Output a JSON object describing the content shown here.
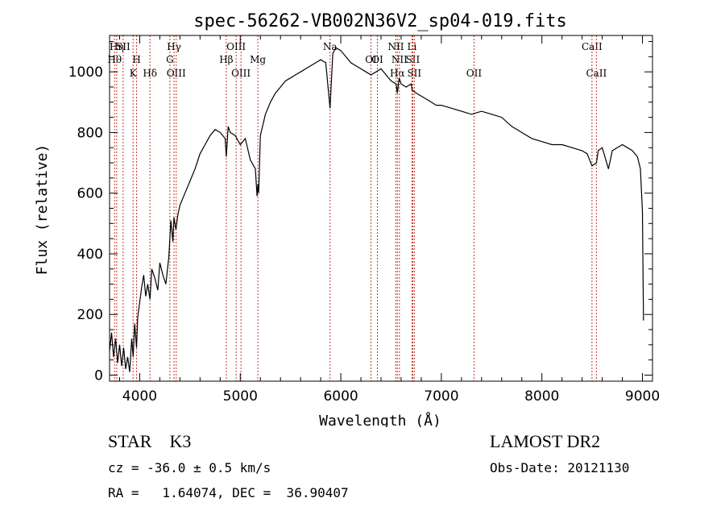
{
  "chart_data": {
    "type": "line",
    "title": "spec-56262-VB002N36V2_sp04-019.fits",
    "xlabel": "Wavelength (Å)",
    "ylabel": "Flux (relative)",
    "xlim": [
      3700,
      9100
    ],
    "ylim": [
      -20,
      1120
    ],
    "x_ticks": [
      4000,
      5000,
      6000,
      7000,
      8000,
      9000
    ],
    "y_ticks": [
      0,
      200,
      400,
      600,
      800,
      1000
    ],
    "grid": false,
    "series": [
      {
        "name": "spectrum",
        "x": [
          3700,
          3720,
          3740,
          3760,
          3780,
          3800,
          3820,
          3840,
          3860,
          3880,
          3900,
          3920,
          3935,
          3950,
          3968,
          3980,
          4000,
          4020,
          4040,
          4060,
          4080,
          4102,
          4120,
          4150,
          4180,
          4200,
          4230,
          4260,
          4290,
          4310,
          4330,
          4340,
          4360,
          4380,
          4400,
          4450,
          4500,
          4550,
          4600,
          4650,
          4700,
          4750,
          4800,
          4850,
          4861,
          4880,
          4900,
          4950,
          5000,
          5050,
          5100,
          5150,
          5167,
          5175,
          5183,
          5200,
          5250,
          5300,
          5350,
          5400,
          5450,
          5500,
          5550,
          5600,
          5650,
          5700,
          5750,
          5800,
          5850,
          5893,
          5920,
          5950,
          6000,
          6050,
          6100,
          6150,
          6200,
          6250,
          6300,
          6350,
          6400,
          6450,
          6500,
          6550,
          6563,
          6580,
          6600,
          6650,
          6700,
          6710,
          6750,
          6800,
          6850,
          6900,
          6950,
          7000,
          7100,
          7200,
          7300,
          7400,
          7500,
          7600,
          7700,
          7800,
          7900,
          8000,
          8100,
          8200,
          8300,
          8400,
          8450,
          8498,
          8542,
          8560,
          8600,
          8662,
          8700,
          8750,
          8800,
          8850,
          8900,
          8950,
          8980,
          9000,
          9010
        ],
        "y": [
          80,
          140,
          60,
          120,
          40,
          100,
          30,
          90,
          20,
          60,
          10,
          120,
          60,
          170,
          90,
          190,
          240,
          290,
          330,
          260,
          300,
          250,
          350,
          320,
          280,
          370,
          330,
          300,
          390,
          510,
          440,
          520,
          480,
          530,
          560,
          600,
          640,
          680,
          730,
          760,
          790,
          810,
          800,
          780,
          720,
          820,
          800,
          790,
          760,
          780,
          710,
          680,
          590,
          630,
          600,
          790,
          860,
          900,
          930,
          950,
          970,
          980,
          990,
          1000,
          1010,
          1020,
          1030,
          1040,
          1030,
          880,
          1060,
          1080,
          1070,
          1050,
          1030,
          1020,
          1010,
          1000,
          990,
          1000,
          1010,
          990,
          970,
          960,
          930,
          980,
          960,
          950,
          960,
          940,
          930,
          920,
          910,
          900,
          890,
          890,
          880,
          870,
          860,
          870,
          860,
          850,
          820,
          800,
          780,
          770,
          760,
          760,
          750,
          740,
          730,
          690,
          700,
          740,
          750,
          680,
          740,
          750,
          760,
          750,
          740,
          720,
          680,
          540,
          180
        ]
      }
    ],
    "line_markers": [
      {
        "wl": 3750,
        "label": "Hθ",
        "row": 1
      },
      {
        "wl": 3771,
        "label": "Hη",
        "row": 0
      },
      {
        "wl": 3835,
        "label": "SII",
        "row": 0
      },
      {
        "wl": 3934,
        "label": "K",
        "row": 2
      },
      {
        "wl": 3969,
        "label": "H",
        "row": 1
      },
      {
        "wl": 4102,
        "label": "Hδ",
        "row": 2
      },
      {
        "wl": 4300,
        "label": "G",
        "row": 1
      },
      {
        "wl": 4341,
        "label": "Hγ",
        "row": 0
      },
      {
        "wl": 4363,
        "label": "OIII",
        "row": 2
      },
      {
        "wl": 4861,
        "label": "Hβ",
        "row": 1
      },
      {
        "wl": 4959,
        "label": "OIII",
        "row": 0
      },
      {
        "wl": 5007,
        "label": "OIII",
        "row": 2
      },
      {
        "wl": 5175,
        "label": "Mg",
        "row": 1
      },
      {
        "wl": 5893,
        "label": "Na",
        "row": 0
      },
      {
        "wl": 6300,
        "label": "OI",
        "row": 1
      },
      {
        "wl": 6364,
        "label": "OI",
        "row": 1
      },
      {
        "wl": 6548,
        "label": "NII",
        "row": 0
      },
      {
        "wl": 6563,
        "label": "Hα",
        "row": 2
      },
      {
        "wl": 6583,
        "label": "NII",
        "row": 1
      },
      {
        "wl": 6708,
        "label": "Li",
        "row": 0
      },
      {
        "wl": 6716,
        "label": "SII",
        "row": 1
      },
      {
        "wl": 6731,
        "label": "SII",
        "row": 2
      },
      {
        "wl": 7325,
        "label": "OII",
        "row": 2
      },
      {
        "wl": 8498,
        "label": "CaII",
        "row": 0
      },
      {
        "wl": 8542,
        "label": "CaII",
        "row": 2
      }
    ]
  },
  "footer": {
    "object_class": "STAR    K3",
    "survey": "LAMOST DR2",
    "redshift": "cz = -36.0 ± 0.5 km/s",
    "obs_date": "Obs-Date: 20121130",
    "coordinates": "RA =   1.64074, DEC =  36.90407"
  }
}
